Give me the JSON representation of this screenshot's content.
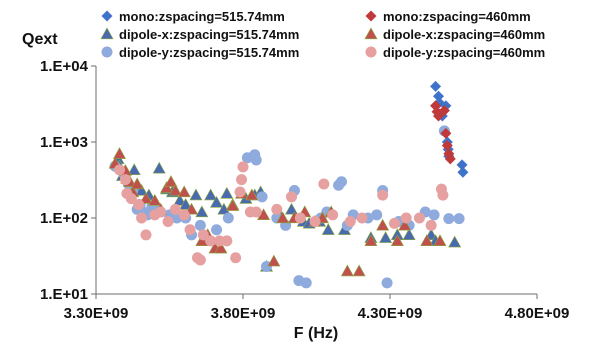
{
  "chart_data": {
    "type": "scatter",
    "title": "",
    "ylabel": "Qext",
    "xlabel": "F (Hz)",
    "x_scale": "linear",
    "y_scale": "log",
    "xlim": [
      3300000000,
      4800000000
    ],
    "ylim": [
      10,
      10000
    ],
    "x_ticks": [
      3300000000,
      3800000000,
      4300000000,
      4800000000
    ],
    "x_tick_labels": [
      "3.30E+09",
      "3.80E+09",
      "4.30E+09",
      "4.80E+09"
    ],
    "y_ticks": [
      10,
      100,
      1000,
      10000
    ],
    "y_tick_labels": [
      "1.E+01",
      "1.E+02",
      "1.E+03",
      "1.E+04"
    ],
    "grid": {
      "x": false,
      "y": false
    },
    "legend_position": "top",
    "series": [
      {
        "name": "mono:zspacing=515.74mm",
        "marker": "diamond",
        "color": "#3f73c9",
        "points": [
          [
            4455000000.0,
            5400
          ],
          [
            4465000000.0,
            4000
          ],
          [
            4468000000.0,
            3300
          ],
          [
            4478000000.0,
            2200
          ],
          [
            4490000000.0,
            3000
          ],
          [
            4495000000.0,
            1000
          ],
          [
            4498000000.0,
            800
          ],
          [
            4500000000.0,
            650
          ],
          [
            4545000000.0,
            500
          ],
          [
            4548000000.0,
            400
          ]
        ]
      },
      {
        "name": "mono:zspacing=460mm",
        "marker": "diamond",
        "color": "#c0393b",
        "points": [
          [
            4455000000.0,
            3000
          ],
          [
            4460000000.0,
            2500
          ],
          [
            4465000000.0,
            2200
          ],
          [
            4485000000.0,
            2600
          ],
          [
            4490000000.0,
            1300
          ],
          [
            4495000000.0,
            900
          ],
          [
            4500000000.0,
            700
          ],
          [
            4505000000.0,
            600
          ]
        ]
      },
      {
        "name": "dipole-x:zspacing=515.74mm",
        "marker": "triangle",
        "color": "#4a6ab0",
        "points": [
          [
            3375000000.0,
            600
          ],
          [
            3380000000.0,
            480
          ],
          [
            3390000000.0,
            360
          ],
          [
            3405000000.0,
            330
          ],
          [
            3430000000.0,
            430
          ],
          [
            3445000000.0,
            250
          ],
          [
            3455000000.0,
            230
          ],
          [
            3480000000.0,
            200
          ],
          [
            3515000000.0,
            450
          ],
          [
            3540000000.0,
            240
          ],
          [
            3560000000.0,
            220
          ],
          [
            3585000000.0,
            170
          ],
          [
            3605000000.0,
            150
          ],
          [
            3640000000.0,
            200
          ],
          [
            3660000000.0,
            120
          ],
          [
            3690000000.0,
            200
          ],
          [
            3710000000.0,
            160
          ],
          [
            3735000000.0,
            130
          ],
          [
            3745000000.0,
            210
          ],
          [
            3765000000.0,
            150
          ],
          [
            3810000000.0,
            180
          ],
          [
            3840000000.0,
            200
          ],
          [
            3860000000.0,
            220
          ],
          [
            3880000000.0,
            23
          ],
          [
            3920000000.0,
            120
          ],
          [
            3965000000.0,
            130
          ],
          [
            4005000000.0,
            90
          ],
          [
            4025000000.0,
            85
          ],
          [
            4060000000.0,
            90
          ],
          [
            4090000000.0,
            70
          ],
          [
            4145000000.0,
            70
          ],
          [
            4235000000.0,
            55
          ],
          [
            4285000000.0,
            55
          ],
          [
            4325000000.0,
            60
          ],
          [
            4365000000.0,
            60
          ],
          [
            4440000000.0,
            60
          ],
          [
            4455000000.0,
            50
          ],
          [
            4520000000.0,
            48
          ]
        ]
      },
      {
        "name": "dipole-x:zspacing=460mm",
        "marker": "triangle",
        "color": "#c0504d",
        "points": [
          [
            3365000000.0,
            520
          ],
          [
            3380000000.0,
            700
          ],
          [
            3400000000.0,
            420
          ],
          [
            3415000000.0,
            300
          ],
          [
            3425000000.0,
            220
          ],
          [
            3440000000.0,
            280
          ],
          [
            3470000000.0,
            180
          ],
          [
            3500000000.0,
            170
          ],
          [
            3520000000.0,
            130
          ],
          [
            3540000000.0,
            250
          ],
          [
            3555000000.0,
            300
          ],
          [
            3570000000.0,
            230
          ],
          [
            3600000000.0,
            220
          ],
          [
            3625000000.0,
            130
          ],
          [
            3660000000.0,
            50
          ],
          [
            3680000000.0,
            60
          ],
          [
            3705000000.0,
            40
          ],
          [
            3725000000.0,
            40
          ],
          [
            3765000000.0,
            145
          ],
          [
            3795000000.0,
            210
          ],
          [
            3830000000.0,
            200
          ],
          [
            3870000000.0,
            110
          ],
          [
            3905000000.0,
            27
          ],
          [
            3935000000.0,
            100
          ],
          [
            3975000000.0,
            100
          ],
          [
            4010000000.0,
            120
          ],
          [
            4045000000.0,
            90
          ],
          [
            4070000000.0,
            100
          ],
          [
            4100000000.0,
            120
          ],
          [
            4155000000.0,
            20
          ],
          [
            4195000000.0,
            20
          ],
          [
            4235000000.0,
            50
          ],
          [
            4275000000.0,
            80
          ],
          [
            4325000000.0,
            50
          ],
          [
            4350000000.0,
            80
          ],
          [
            4425000000.0,
            50
          ],
          [
            4470000000.0,
            50
          ]
        ]
      },
      {
        "name": "dipole-y:zspacing=515.74mm",
        "marker": "circle",
        "color": "#8faadc",
        "points": [
          [
            3365000000.0,
            480
          ],
          [
            3395000000.0,
            380
          ],
          [
            3410000000.0,
            280
          ],
          [
            3425000000.0,
            230
          ],
          [
            3440000000.0,
            130
          ],
          [
            3450000000.0,
            150
          ],
          [
            3460000000.0,
            120
          ],
          [
            3475000000.0,
            110
          ],
          [
            3490000000.0,
            140
          ],
          [
            3500000000.0,
            130
          ],
          [
            3520000000.0,
            120
          ],
          [
            3550000000.0,
            110
          ],
          [
            3575000000.0,
            100
          ],
          [
            3605000000.0,
            100
          ],
          [
            3625000000.0,
            60
          ],
          [
            3655000000.0,
            80
          ],
          [
            3670000000.0,
            55
          ],
          [
            3710000000.0,
            70
          ],
          [
            3750000000.0,
            100
          ],
          [
            3815000000.0,
            620
          ],
          [
            3840000000.0,
            680
          ],
          [
            3845000000.0,
            580
          ],
          [
            3865000000.0,
            190
          ],
          [
            3880000000.0,
            23
          ],
          [
            3915000000.0,
            100
          ],
          [
            3945000000.0,
            80
          ],
          [
            3975000000.0,
            230
          ],
          [
            3990000000.0,
            15
          ],
          [
            4015000000.0,
            14
          ],
          [
            4065000000.0,
            100
          ],
          [
            4085000000.0,
            120
          ],
          [
            4125000000.0,
            270
          ],
          [
            4135000000.0,
            300
          ],
          [
            4155000000.0,
            80
          ],
          [
            4175000000.0,
            110
          ],
          [
            4225000000.0,
            100
          ],
          [
            4255000000.0,
            110
          ],
          [
            4275000000.0,
            230
          ],
          [
            4290000000.0,
            14
          ],
          [
            4330000000.0,
            90
          ],
          [
            4365000000.0,
            80
          ],
          [
            4420000000.0,
            120
          ],
          [
            4450000000.0,
            110
          ],
          [
            4485000000.0,
            1400
          ],
          [
            4500000000.0,
            98
          ],
          [
            4535000000.0,
            98
          ]
        ]
      },
      {
        "name": "dipole-y:zspacing=460mm",
        "marker": "circle",
        "color": "#e6a0a0",
        "points": [
          [
            3380000000.0,
            430
          ],
          [
            3400000000.0,
            320
          ],
          [
            3405000000.0,
            210
          ],
          [
            3420000000.0,
            180
          ],
          [
            3445000000.0,
            150
          ],
          [
            3455000000.0,
            100
          ],
          [
            3470000000.0,
            60
          ],
          [
            3500000000.0,
            110
          ],
          [
            3520000000.0,
            120
          ],
          [
            3545000000.0,
            90
          ],
          [
            3570000000.0,
            130
          ],
          [
            3600000000.0,
            110
          ],
          [
            3620000000.0,
            70
          ],
          [
            3645000000.0,
            30
          ],
          [
            3655000000.0,
            28
          ],
          [
            3665000000.0,
            60
          ],
          [
            3690000000.0,
            50
          ],
          [
            3720000000.0,
            50
          ],
          [
            3745000000.0,
            50
          ],
          [
            3775000000.0,
            30
          ],
          [
            3790000000.0,
            220
          ],
          [
            3795000000.0,
            320
          ],
          [
            3800000000.0,
            470
          ],
          [
            3825000000.0,
            120
          ],
          [
            3845000000.0,
            120
          ],
          [
            3915000000.0,
            130
          ],
          [
            3965000000.0,
            190
          ],
          [
            3995000000.0,
            100
          ],
          [
            4045000000.0,
            90
          ],
          [
            4075000000.0,
            280
          ],
          [
            4105000000.0,
            110
          ],
          [
            4165000000.0,
            90
          ],
          [
            4205000000.0,
            100
          ],
          [
            4275000000.0,
            200
          ],
          [
            4315000000.0,
            85
          ],
          [
            4355000000.0,
            100
          ],
          [
            4400000000.0,
            100
          ],
          [
            4440000000.0,
            80
          ],
          [
            4475000000.0,
            240
          ],
          [
            4480000000.0,
            200
          ]
        ]
      }
    ]
  }
}
